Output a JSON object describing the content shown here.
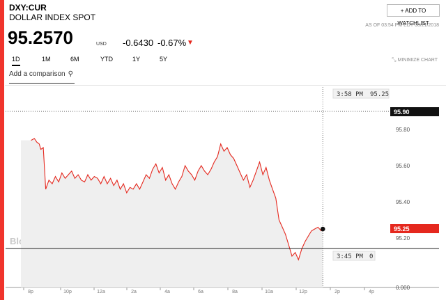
{
  "header": {
    "ticker": "DXY:CUR",
    "name": "DOLLAR INDEX SPOT",
    "watchlist_label": "+ ADD TO WATCHLIST",
    "as_of": "AS OF 03:54 PM EDT 08/21/2018",
    "price": "95.2570",
    "currency": "USD",
    "change": "-0.6430",
    "change_pct": "-0.67%",
    "direction": "down",
    "down_color": "#e5281e"
  },
  "tabs": [
    "1D",
    "1M",
    "6M",
    "YTD",
    "1Y",
    "5Y"
  ],
  "active_tab": "1D",
  "minimize_label": "MINIMIZE CHART",
  "compare": {
    "placeholder": "Add a comparison"
  },
  "watermark": "BloombergMarkets",
  "chart_data": {
    "type": "area",
    "title": "",
    "xlabel": "",
    "ylabel": "",
    "ylim": [
      0,
      95.9
    ],
    "y_ticks_labeled": [
      "95.80",
      "95.60",
      "95.40",
      "95.20",
      "0.000"
    ],
    "x_tick_labels": [
      "8p",
      "10p",
      "12a",
      "2a",
      "4a",
      "6a",
      "8a",
      "10a",
      "12p",
      "2p",
      "4p"
    ],
    "reference_lines": [
      {
        "value": 95.9,
        "label": "95.90"
      },
      {
        "value": 95.25,
        "label": "95.25"
      }
    ],
    "crosshair": {
      "time_label": "3:58 PM",
      "value_label": "95.25",
      "bottom_time": "3:45 PM",
      "bottom_value": "0"
    },
    "line_color": "#e5281e",
    "series": [
      {
        "values": [
          [
            19.0,
            95.74
          ],
          [
            19.2,
            95.75
          ],
          [
            19.35,
            95.73
          ],
          [
            19.5,
            95.72
          ],
          [
            19.6,
            95.69
          ],
          [
            19.75,
            95.7
          ],
          [
            19.9,
            95.47
          ],
          [
            20.1,
            95.52
          ],
          [
            20.3,
            95.5
          ],
          [
            20.5,
            95.54
          ],
          [
            20.7,
            95.51
          ],
          [
            20.9,
            95.56
          ],
          [
            21.1,
            95.53
          ],
          [
            21.3,
            95.55
          ],
          [
            21.5,
            95.57
          ],
          [
            21.7,
            95.53
          ],
          [
            21.9,
            95.55
          ],
          [
            22.1,
            95.52
          ],
          [
            22.3,
            95.51
          ],
          [
            22.5,
            95.55
          ],
          [
            22.7,
            95.52
          ],
          [
            22.9,
            95.54
          ],
          [
            23.1,
            95.53
          ],
          [
            23.3,
            95.5
          ],
          [
            23.5,
            95.54
          ],
          [
            23.7,
            95.5
          ],
          [
            23.9,
            95.53
          ],
          [
            24.1,
            95.49
          ],
          [
            24.3,
            95.52
          ],
          [
            24.5,
            95.47
          ],
          [
            24.7,
            95.5
          ],
          [
            24.9,
            95.45
          ],
          [
            25.1,
            95.48
          ],
          [
            25.3,
            95.47
          ],
          [
            25.5,
            95.5
          ],
          [
            25.7,
            95.47
          ],
          [
            25.9,
            95.51
          ],
          [
            26.1,
            95.55
          ],
          [
            26.3,
            95.53
          ],
          [
            26.5,
            95.58
          ],
          [
            26.7,
            95.61
          ],
          [
            26.9,
            95.56
          ],
          [
            27.1,
            95.59
          ],
          [
            27.3,
            95.52
          ],
          [
            27.5,
            95.55
          ],
          [
            27.7,
            95.5
          ],
          [
            27.9,
            95.47
          ],
          [
            28.1,
            95.51
          ],
          [
            28.3,
            95.54
          ],
          [
            28.5,
            95.6
          ],
          [
            28.7,
            95.57
          ],
          [
            28.9,
            95.55
          ],
          [
            29.1,
            95.52
          ],
          [
            29.3,
            95.57
          ],
          [
            29.5,
            95.6
          ],
          [
            29.7,
            95.57
          ],
          [
            29.9,
            95.55
          ],
          [
            30.1,
            95.58
          ],
          [
            30.3,
            95.62
          ],
          [
            30.5,
            95.65
          ],
          [
            30.7,
            95.72
          ],
          [
            30.9,
            95.68
          ],
          [
            31.1,
            95.7
          ],
          [
            31.3,
            95.66
          ],
          [
            31.5,
            95.64
          ],
          [
            31.7,
            95.6
          ],
          [
            31.9,
            95.56
          ],
          [
            32.1,
            95.52
          ],
          [
            32.3,
            95.55
          ],
          [
            32.5,
            95.48
          ],
          [
            32.7,
            95.52
          ],
          [
            32.9,
            95.57
          ],
          [
            33.1,
            95.62
          ],
          [
            33.3,
            95.55
          ],
          [
            33.5,
            95.59
          ],
          [
            33.7,
            95.52
          ],
          [
            33.9,
            95.47
          ],
          [
            34.1,
            95.42
          ],
          [
            34.3,
            95.3
          ],
          [
            34.5,
            95.26
          ],
          [
            34.7,
            95.22
          ],
          [
            34.9,
            95.16
          ],
          [
            35.1,
            95.1
          ],
          [
            35.3,
            95.12
          ],
          [
            35.5,
            95.08
          ],
          [
            35.7,
            95.14
          ],
          [
            35.9,
            95.18
          ],
          [
            36.1,
            95.21
          ],
          [
            36.3,
            95.24
          ],
          [
            36.5,
            95.25
          ],
          [
            36.7,
            95.26
          ],
          [
            36.9,
            95.24
          ],
          [
            37.0,
            95.25
          ]
        ]
      }
    ]
  }
}
